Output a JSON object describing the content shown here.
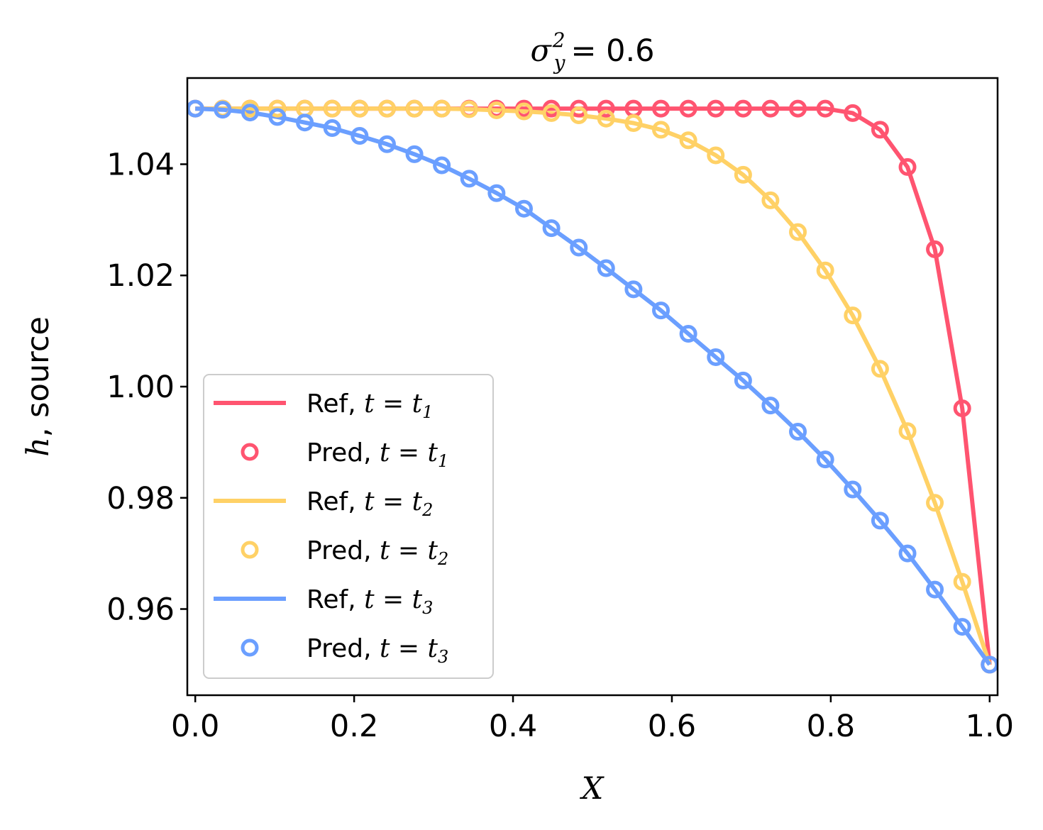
{
  "chart_data": {
    "type": "line",
    "title_symbol": "σ",
    "title_sub": "y",
    "title_sup": "2",
    "title_value": "= 0.6",
    "xlabel": "X",
    "ylabel_var": "h",
    "ylabel_rest": ", source",
    "xlim": [
      -0.01,
      1.01
    ],
    "ylim": [
      0.9445,
      1.0555
    ],
    "xticks": [
      0.0,
      0.2,
      0.4,
      0.6,
      0.8,
      1.0
    ],
    "xtick_labels": [
      "0.0",
      "0.2",
      "0.4",
      "0.6",
      "0.8",
      "1.0"
    ],
    "yticks": [
      0.96,
      0.98,
      1.0,
      1.02,
      1.04
    ],
    "ytick_labels": [
      "0.96",
      "0.98",
      "1.00",
      "1.02",
      "1.04"
    ],
    "x": [
      0.0,
      0.0345,
      0.069,
      0.1034,
      0.1379,
      0.1724,
      0.2069,
      0.2414,
      0.2759,
      0.3103,
      0.3448,
      0.3793,
      0.4138,
      0.4483,
      0.4828,
      0.5172,
      0.5517,
      0.5862,
      0.6207,
      0.6552,
      0.6897,
      0.7241,
      0.7586,
      0.7931,
      0.8276,
      0.8621,
      0.8966,
      0.931,
      0.9655,
      1.0
    ],
    "series": [
      {
        "name": "t1",
        "color": "#ff5470",
        "values": [
          1.05,
          1.05,
          1.05,
          1.05,
          1.05,
          1.05,
          1.05,
          1.05,
          1.05,
          1.05,
          1.05,
          1.05,
          1.05,
          1.05,
          1.05,
          1.05,
          1.05,
          1.05,
          1.05,
          1.05,
          1.05,
          1.05,
          1.05,
          1.05,
          1.0492,
          1.0462,
          1.0395,
          1.0247,
          0.9961,
          0.95
        ]
      },
      {
        "name": "t2",
        "color": "#ffd166",
        "values": [
          1.05,
          1.05,
          1.05,
          1.05,
          1.05,
          1.05,
          1.05,
          1.05,
          1.05,
          1.05,
          1.0499,
          1.0497,
          1.0495,
          1.0492,
          1.0488,
          1.0482,
          1.0474,
          1.0462,
          1.0443,
          1.0416,
          1.0381,
          1.0335,
          1.0278,
          1.0209,
          1.0128,
          1.0032,
          0.992,
          0.9791,
          0.9649,
          0.95
        ]
      },
      {
        "name": "t3",
        "color": "#6b9fff",
        "values": [
          1.05,
          1.0498,
          1.0493,
          1.0485,
          1.0475,
          1.0465,
          1.0451,
          1.0436,
          1.0418,
          1.0398,
          1.0374,
          1.0348,
          1.032,
          1.0285,
          1.025,
          1.0213,
          1.0175,
          1.0137,
          1.0095,
          1.0053,
          1.0011,
          0.9966,
          0.9919,
          0.9869,
          0.9815,
          0.9759,
          0.97,
          0.9635,
          0.9568,
          0.95
        ]
      }
    ],
    "legend": {
      "position": "lower-left",
      "entries": [
        {
          "label": "Ref, ",
          "t_sub": "1",
          "kind": "line",
          "series": 0
        },
        {
          "label": "Pred, ",
          "t_sub": "1",
          "kind": "marker",
          "series": 0
        },
        {
          "label": "Ref, ",
          "t_sub": "2",
          "kind": "line",
          "series": 1
        },
        {
          "label": "Pred, ",
          "t_sub": "2",
          "kind": "marker",
          "series": 1
        },
        {
          "label": "Ref, ",
          "t_sub": "3",
          "kind": "line",
          "series": 2
        },
        {
          "label": "Pred, ",
          "t_sub": "3",
          "kind": "marker",
          "series": 2
        }
      ],
      "t_expr": "t = t"
    }
  }
}
